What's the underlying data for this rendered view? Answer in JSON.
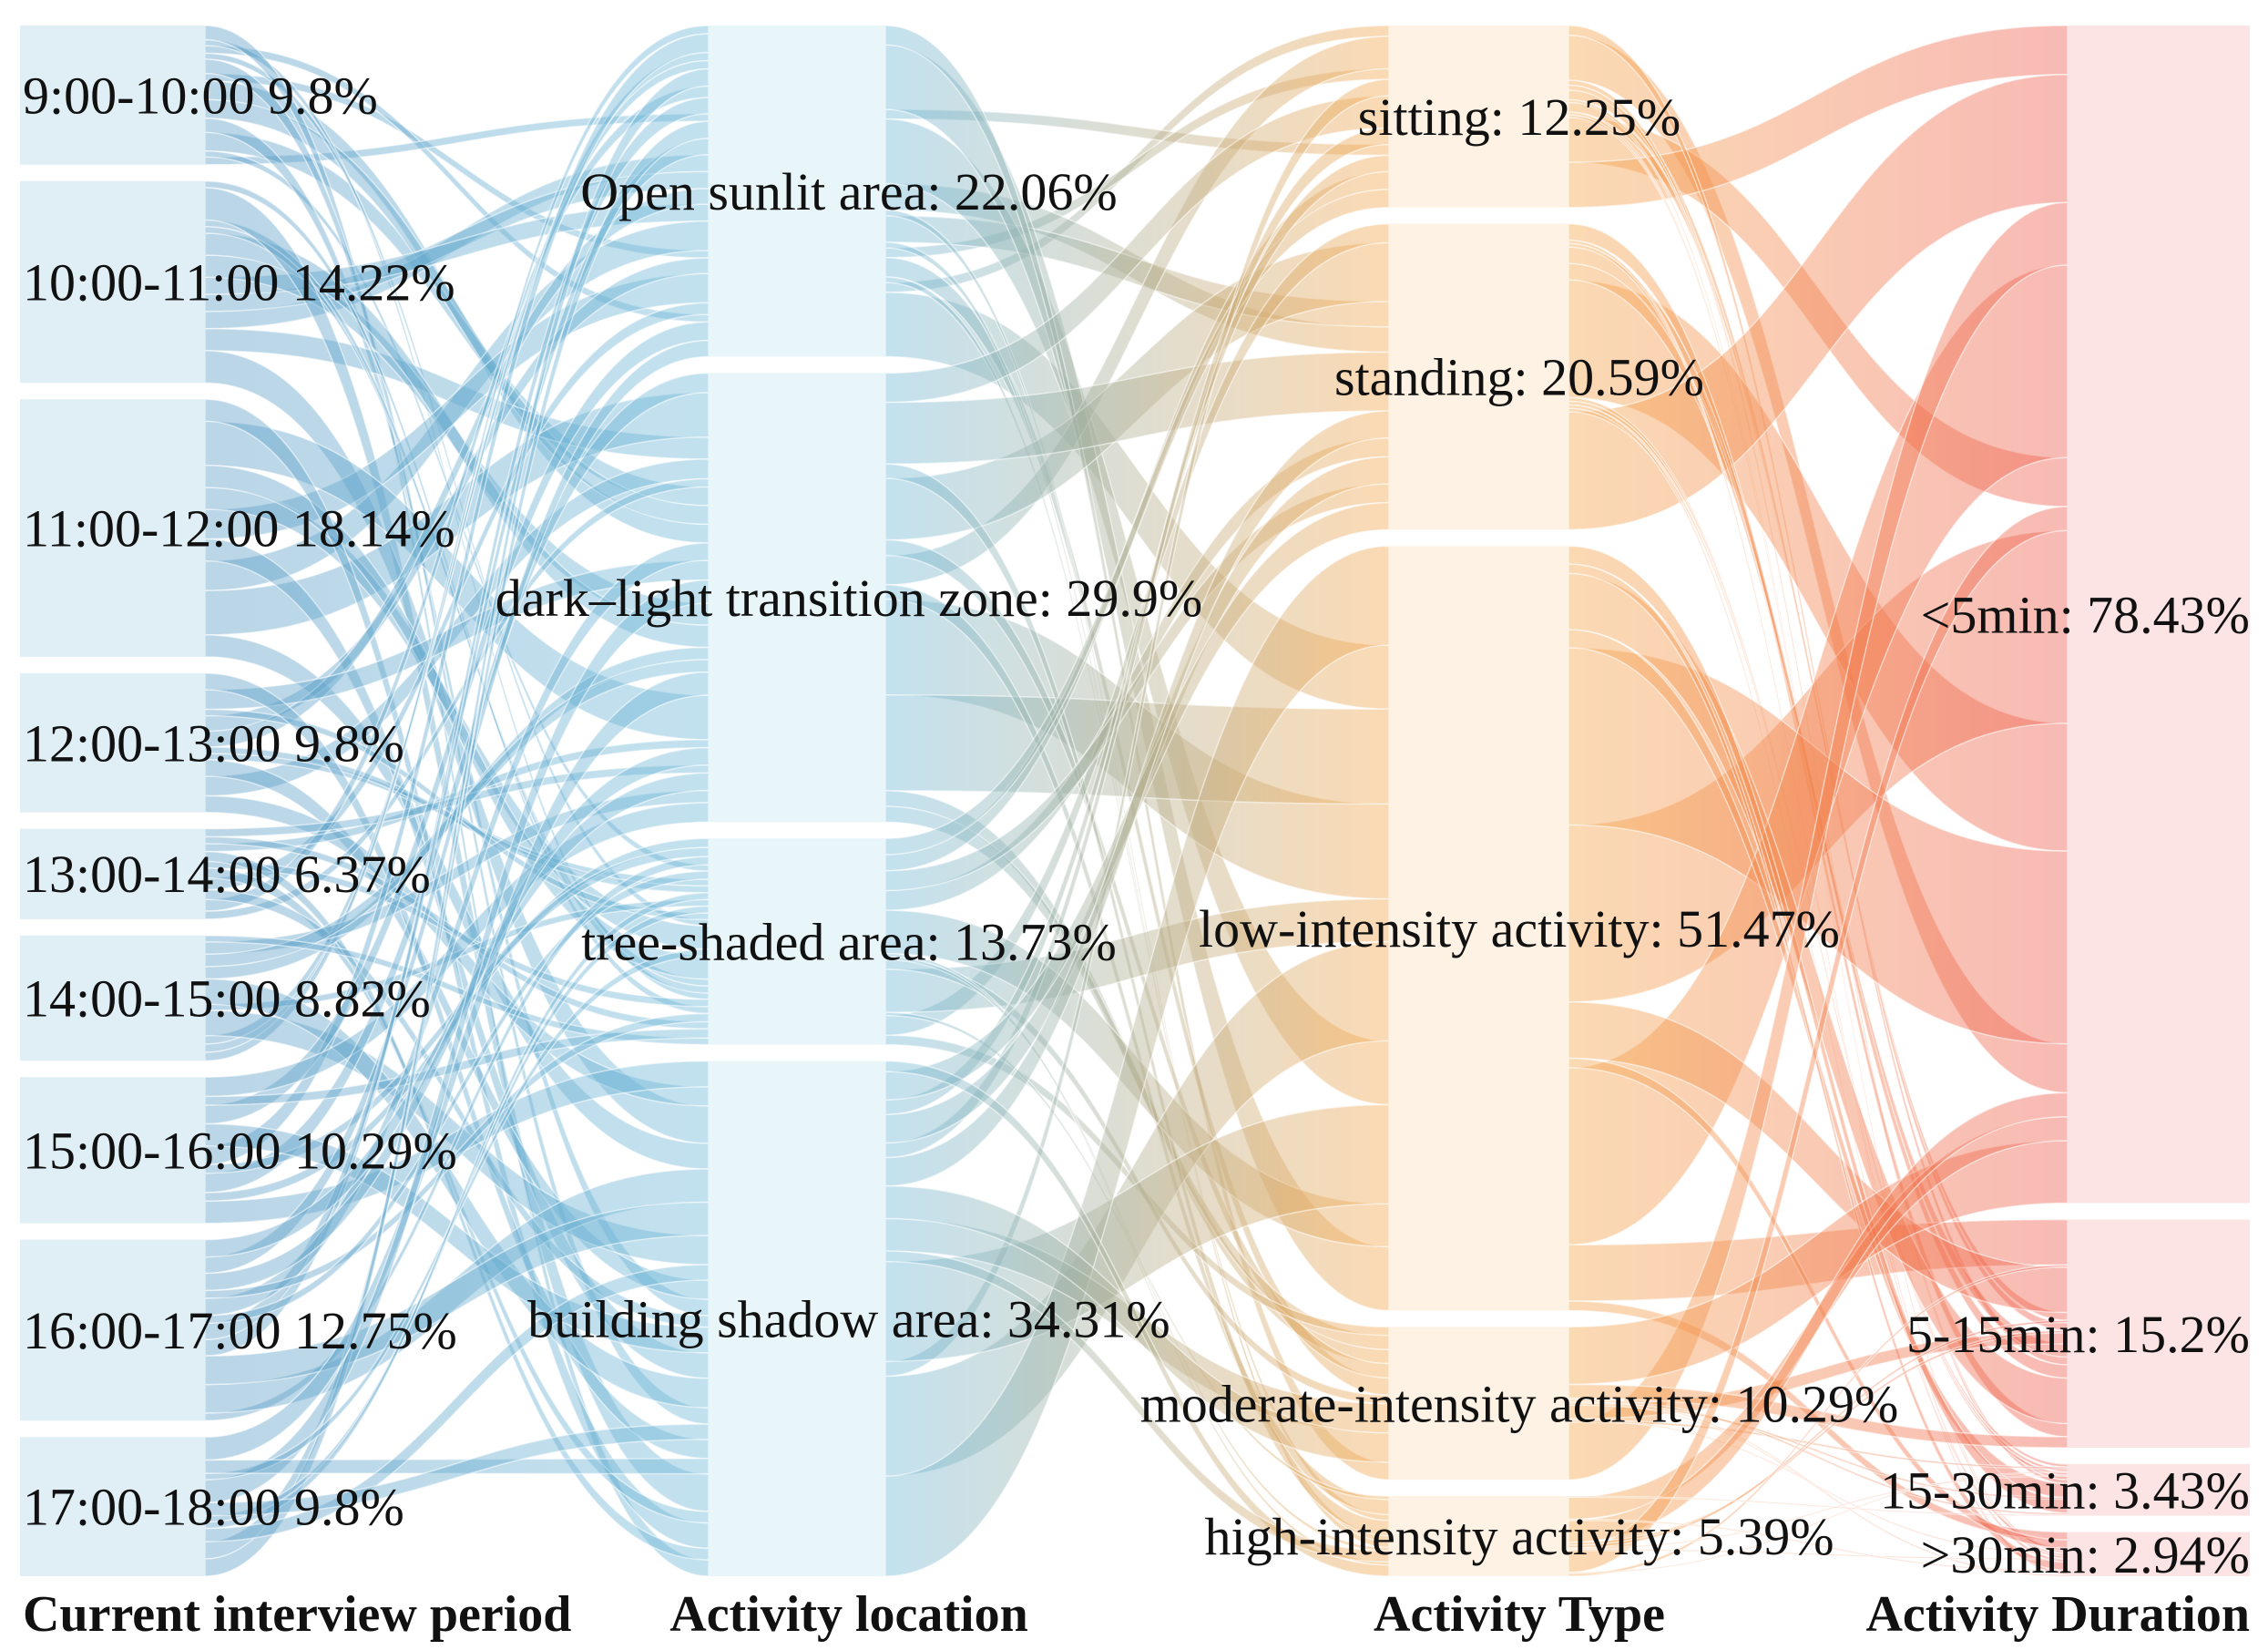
{
  "chart_data": {
    "type": "sankey",
    "title": "",
    "columns": [
      {
        "name": "Current interview period",
        "color": "#5a9cc5",
        "node_color": "#d7e9f2",
        "nodes": [
          {
            "label": "9:00-10:00 9.8%",
            "value": 9.8
          },
          {
            "label": "10:00-11:00 14.22%",
            "value": 14.22
          },
          {
            "label": "11:00-12:00 18.14%",
            "value": 18.14
          },
          {
            "label": "12:00-13:00 9.8%",
            "value": 9.8
          },
          {
            "label": "13:00-14:00 6.37%",
            "value": 6.37
          },
          {
            "label": "14:00-15:00 8.82%",
            "value": 8.82
          },
          {
            "label": "15:00-16:00 10.29%",
            "value": 10.29
          },
          {
            "label": "16:00-17:00 12.75%",
            "value": 12.75
          },
          {
            "label": "17:00-18:00 9.8%",
            "value": 9.8
          }
        ]
      },
      {
        "name": "Activity location",
        "color": "#6fb8d8",
        "node_color": "#e2f3f7",
        "nodes": [
          {
            "label": "Open sunlit area: 22.06%",
            "value": 22.06
          },
          {
            "label": "dark–light transition zone: 29.9%",
            "value": 29.9
          },
          {
            "label": "tree-shaded area: 13.73%",
            "value": 13.73
          },
          {
            "label": "building shadow area: 34.31%",
            "value": 34.31
          }
        ]
      },
      {
        "name": "Activity Type",
        "color": "#f5a64a",
        "node_color": "#fdeedb",
        "nodes": [
          {
            "label": "sitting: 12.25%",
            "value": 12.25
          },
          {
            "label": "standing: 20.59%",
            "value": 20.59
          },
          {
            "label": "low-intensity activity: 51.47%",
            "value": 51.47
          },
          {
            "label": "moderate-intensity activity: 10.29%",
            "value": 10.29
          },
          {
            "label": "high-intensity activity: 5.39%",
            "value": 5.39
          }
        ]
      },
      {
        "name": "Activity Duration",
        "color": "#ee5a4c",
        "node_color": "#fcdcdc",
        "nodes": [
          {
            "label": "<5min: 78.43%",
            "value": 78.43
          },
          {
            "label": "5-15min: 15.2%",
            "value": 15.2
          },
          {
            "label": "15-30min: 3.43%",
            "value": 3.43
          },
          {
            "label": ">30min: 2.94%",
            "value": 2.94
          }
        ]
      }
    ]
  }
}
